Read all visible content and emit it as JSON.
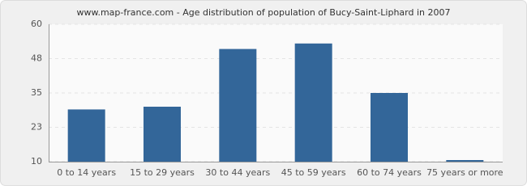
{
  "chart_data": {
    "type": "bar",
    "title": "www.map-france.com - Age distribution of population of Bucy-Saint-Liphard in 2007",
    "categories": [
      "0 to 14 years",
      "15 to 29 years",
      "30 to 44 years",
      "45 to 59 years",
      "60 to 74 years",
      "75 years or more"
    ],
    "values": [
      29,
      30,
      51,
      53,
      35,
      10
    ],
    "color": "#336699",
    "ylim": [
      10,
      60
    ],
    "yticks": [
      10,
      {
        "value": 22.5,
        "label": "23"
      },
      35,
      {
        "value": 47.5,
        "label": "48"
      },
      60
    ],
    "grid": true
  }
}
